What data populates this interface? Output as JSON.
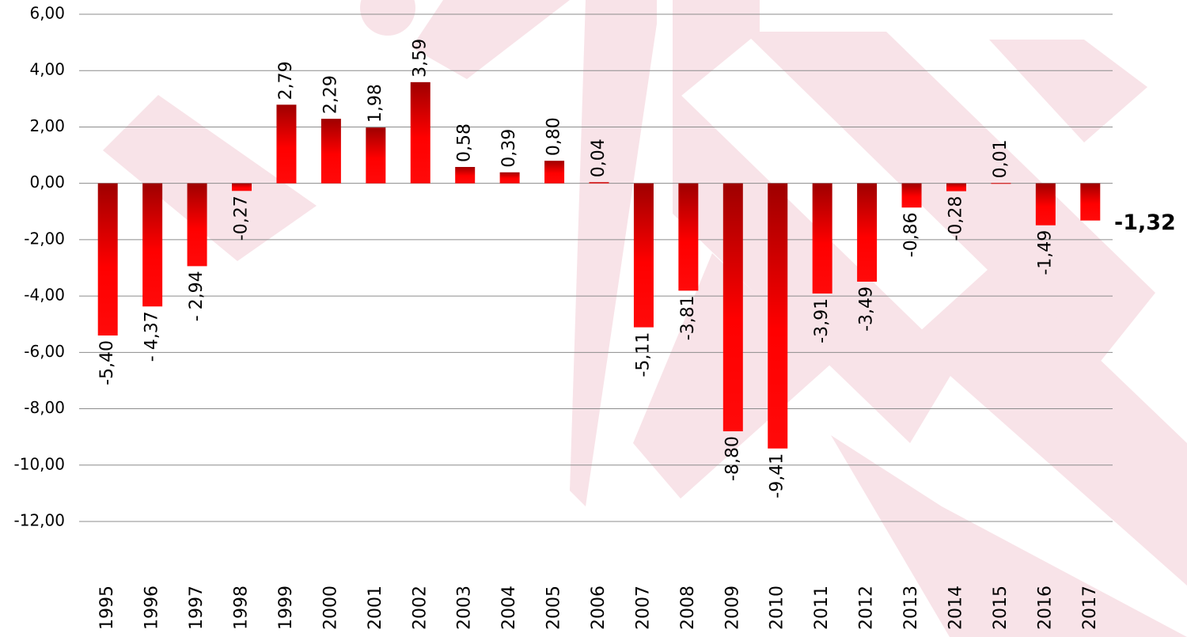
{
  "chart_data": {
    "type": "bar",
    "categories": [
      "1995",
      "1996",
      "1997",
      "1998",
      "1999",
      "2000",
      "2001",
      "2002",
      "2003",
      "2004",
      "2005",
      "2006",
      "2007",
      "2008",
      "2009",
      "2010",
      "2011",
      "2012",
      "2013",
      "2014",
      "2015",
      "2016",
      "2017"
    ],
    "values": [
      -5.4,
      -4.37,
      -2.94,
      -0.27,
      2.79,
      2.29,
      1.98,
      3.59,
      0.58,
      0.39,
      0.8,
      0.04,
      -5.11,
      -3.81,
      -8.8,
      -9.41,
      -3.91,
      -3.49,
      -0.86,
      -0.28,
      0.01,
      -1.49,
      -1.32
    ],
    "value_labels": [
      "-5,40",
      "- 4,37",
      "- 2,94",
      "-0,27",
      "2,79",
      "2,29",
      "1,98",
      "3,59",
      "0,58",
      "0,39",
      "0,80",
      "0,04",
      "-5,11",
      "-3,81",
      "-8,80",
      "-9,41",
      "-3,91",
      "-3,49",
      "-0,86",
      "-0,28",
      "0,01",
      "-1,49",
      "-1,32"
    ],
    "color": "#ff0000",
    "ylim": [
      -12,
      6
    ],
    "yticks": [
      {
        "value": -12,
        "label": "-12,00"
      },
      {
        "value": -10,
        "label": "-10,00"
      },
      {
        "value": -8,
        "label": "-8,00"
      },
      {
        "value": -6,
        "label": "-6,00"
      },
      {
        "value": -4,
        "label": "-4,00"
      },
      {
        "value": -2,
        "label": "-2,00"
      },
      {
        "value": 0,
        "label": "0,00"
      },
      {
        "value": 2,
        "label": "2,00"
      },
      {
        "value": 4,
        "label": "4,00"
      },
      {
        "value": 6,
        "label": "6,00"
      }
    ],
    "grid": true
  }
}
